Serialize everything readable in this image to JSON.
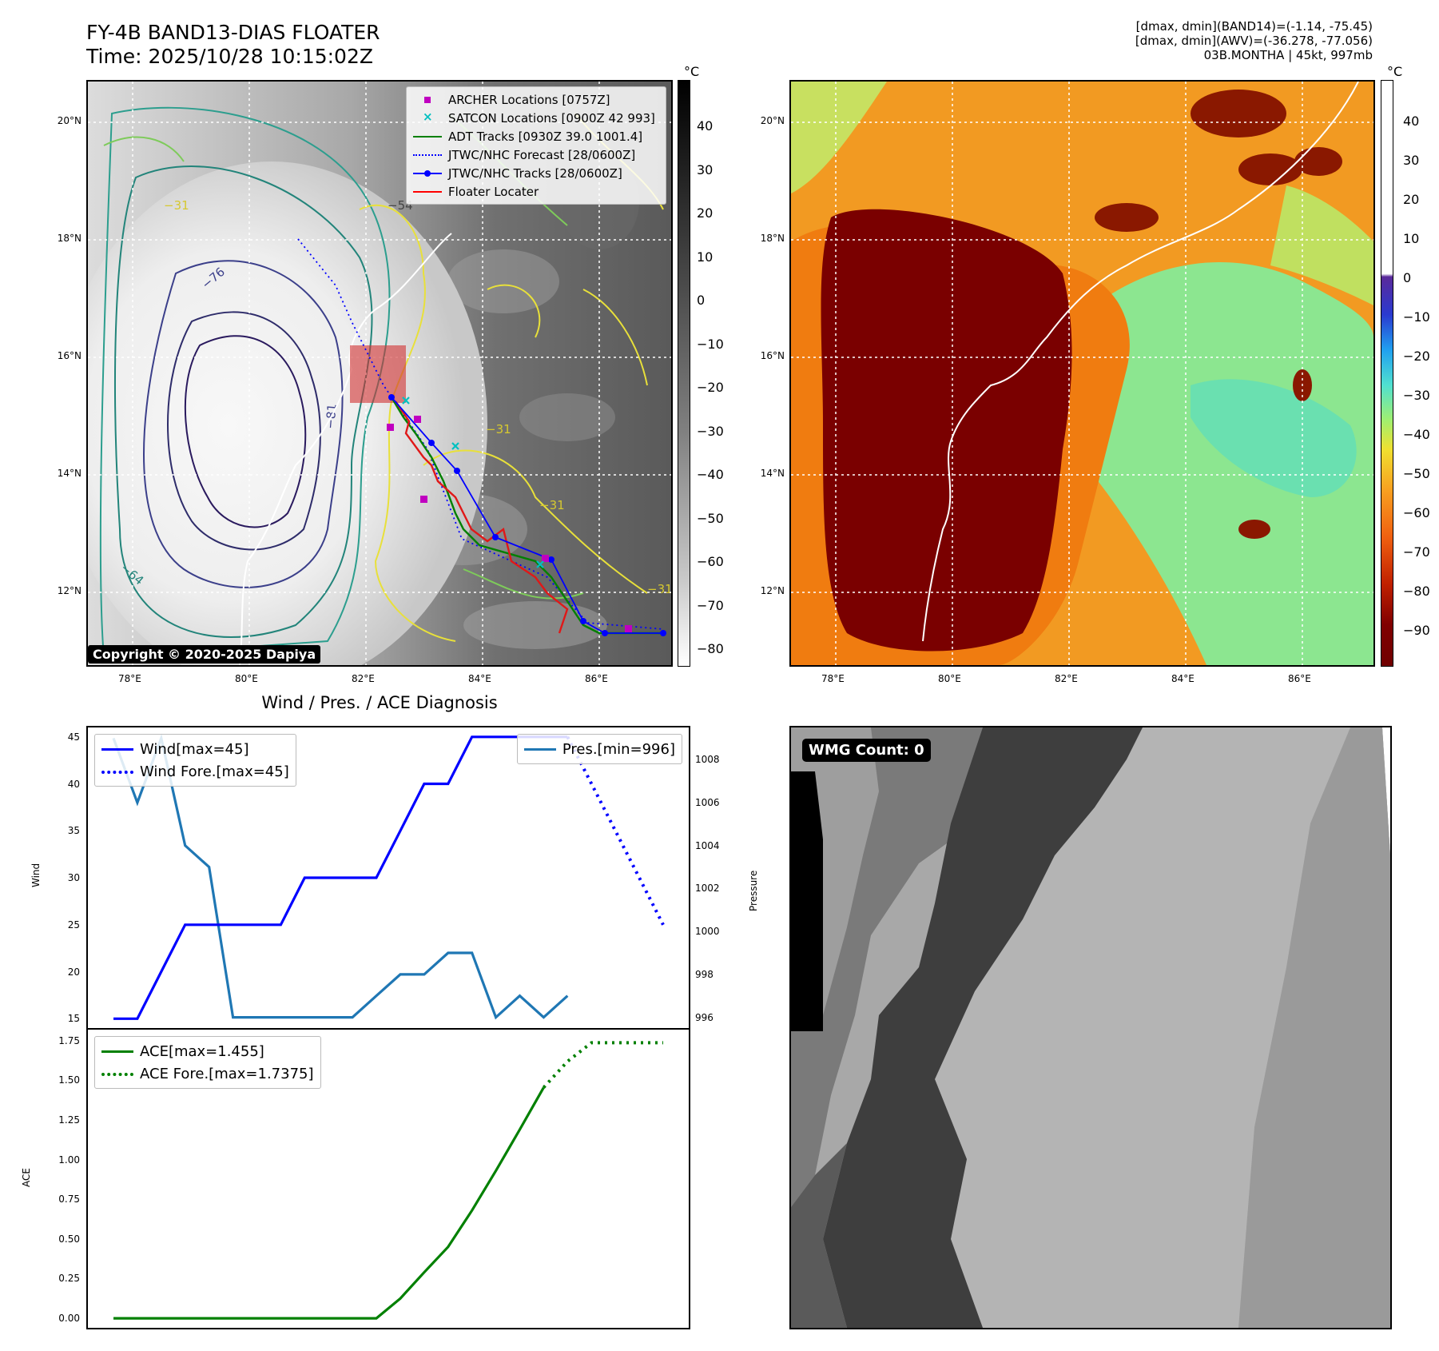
{
  "header": {
    "title_line1": "FY-4B BAND13-DIAS FLOATER",
    "title_line2": "Time: 2025/10/28 10:15:02Z",
    "info_line1": "[dmax, dmin](BAND14)=(-1.14, -75.45)",
    "info_line2": "[dmax, dmin](AWV)=(-36.278, -77.056)",
    "info_line3": "03B.MONTHA | 45kt, 997mb"
  },
  "colors": {
    "archer": "#c000c0",
    "satcon": "#00c0c0",
    "adt": "#008000",
    "jtwc_forecast": "#0000ff",
    "jtwc_track": "#0000ff",
    "floater": "#ff0000",
    "wind": "#0000ff",
    "pressure": "#1f77b4",
    "ace": "#008000"
  },
  "map_left": {
    "unit": "°C",
    "colorbar_ticks": [
      "40",
      "30",
      "20",
      "10",
      "0",
      "−10",
      "−20",
      "−30",
      "−40",
      "−50",
      "−60",
      "−70",
      "−80"
    ],
    "lon_ticks": [
      "78°E",
      "80°E",
      "82°E",
      "84°E",
      "86°E"
    ],
    "lat_ticks": [
      "20°N",
      "18°N",
      "16°N",
      "14°N",
      "12°N"
    ],
    "contour_labels": [
      "−31",
      "−54",
      "−76",
      "−81",
      "−64",
      "−31",
      "−31",
      "−31"
    ],
    "legend": [
      {
        "label": "ARCHER Locations [0757Z]",
        "icon": "square-marker"
      },
      {
        "label": "SATCON Locations [0900Z 42 993]",
        "icon": "x-marker"
      },
      {
        "label": "ADT Tracks [0930Z 39.0 1001.4]",
        "icon": "solid-line"
      },
      {
        "label": "JTWC/NHC Forecast [28/0600Z]",
        "icon": "dotted-line"
      },
      {
        "label": "JTWC/NHC Tracks [28/0600Z]",
        "icon": "line-with-dot"
      },
      {
        "label": "Floater Locater",
        "icon": "solid-line"
      }
    ],
    "copyright": "Copyright © 2020-2025 Dapiya"
  },
  "map_right": {
    "unit": "°C",
    "colorbar_ticks": [
      "40",
      "30",
      "20",
      "10",
      "0",
      "−10",
      "−20",
      "−30",
      "−40",
      "−50",
      "−60",
      "−70",
      "−80",
      "−90"
    ],
    "lon_ticks": [
      "78°E",
      "80°E",
      "82°E",
      "84°E",
      "86°E"
    ],
    "lat_ticks": [
      "20°N",
      "18°N",
      "16°N",
      "14°N",
      "12°N"
    ]
  },
  "chart_data": [
    {
      "type": "line",
      "title": "Wind / Pres. / ACE Diagnosis",
      "ylabel": "Wind",
      "ylabel_right": "Pressure",
      "ylim": [
        14,
        46
      ],
      "ylim_right": [
        995.5,
        1009.5
      ],
      "yticks": [
        "45",
        "40",
        "35",
        "30",
        "25",
        "20",
        "15"
      ],
      "yticks_right": [
        "1008",
        "1006",
        "1004",
        "1002",
        "1000",
        "998",
        "996"
      ],
      "x": [
        0,
        1,
        2,
        3,
        4,
        5,
        6,
        7,
        8,
        9,
        10,
        11,
        12,
        13,
        14,
        15,
        16,
        17,
        18,
        19,
        20,
        21,
        22,
        23
      ],
      "series": [
        {
          "name": "Wind[max=45]",
          "axis": "left",
          "style": "solid",
          "values": [
            15,
            15,
            20,
            25,
            25,
            25,
            25,
            25,
            30,
            30,
            30,
            30,
            35,
            40,
            40,
            45,
            45,
            45,
            45,
            45,
            null,
            null,
            null,
            null
          ]
        },
        {
          "name": "Wind Fore.[max=45]",
          "axis": "left",
          "style": "dotted",
          "values": [
            null,
            null,
            null,
            null,
            null,
            null,
            null,
            null,
            null,
            null,
            null,
            null,
            null,
            null,
            null,
            null,
            null,
            null,
            null,
            45,
            40,
            35,
            30,
            25
          ]
        },
        {
          "name": "Pres.[min=996]",
          "axis": "right",
          "style": "solid",
          "values": [
            1009,
            1006,
            1009,
            1004,
            1003,
            996,
            996,
            996,
            996,
            996,
            996,
            997,
            998,
            998,
            999,
            999,
            996,
            997,
            996,
            997,
            null,
            null,
            null,
            null
          ]
        }
      ]
    },
    {
      "type": "line",
      "ylabel": "ACE",
      "ylim": [
        -0.06,
        1.82
      ],
      "yticks": [
        "1.75",
        "1.50",
        "1.25",
        "1.00",
        "0.75",
        "0.50",
        "0.25",
        "0.00"
      ],
      "x": [
        0,
        1,
        2,
        3,
        4,
        5,
        6,
        7,
        8,
        9,
        10,
        11,
        12,
        13,
        14,
        15,
        16,
        17,
        18,
        19,
        20,
        21,
        22,
        23
      ],
      "series": [
        {
          "name": "ACE[max=1.455]",
          "style": "solid",
          "values": [
            0,
            0,
            0,
            0,
            0,
            0,
            0,
            0,
            0,
            0,
            0,
            0,
            0.125,
            0.29,
            0.45,
            0.68,
            0.93,
            1.19,
            1.455,
            null,
            null,
            null,
            null,
            null
          ]
        },
        {
          "name": "ACE Fore.[max=1.7375]",
          "style": "dotted",
          "values": [
            null,
            null,
            null,
            null,
            null,
            null,
            null,
            null,
            null,
            null,
            null,
            null,
            null,
            null,
            null,
            null,
            null,
            null,
            1.455,
            1.62,
            1.7375,
            1.7375,
            1.7375,
            1.7375
          ]
        }
      ]
    }
  ],
  "wmg_panel": {
    "label": "WMG Count: 0"
  }
}
